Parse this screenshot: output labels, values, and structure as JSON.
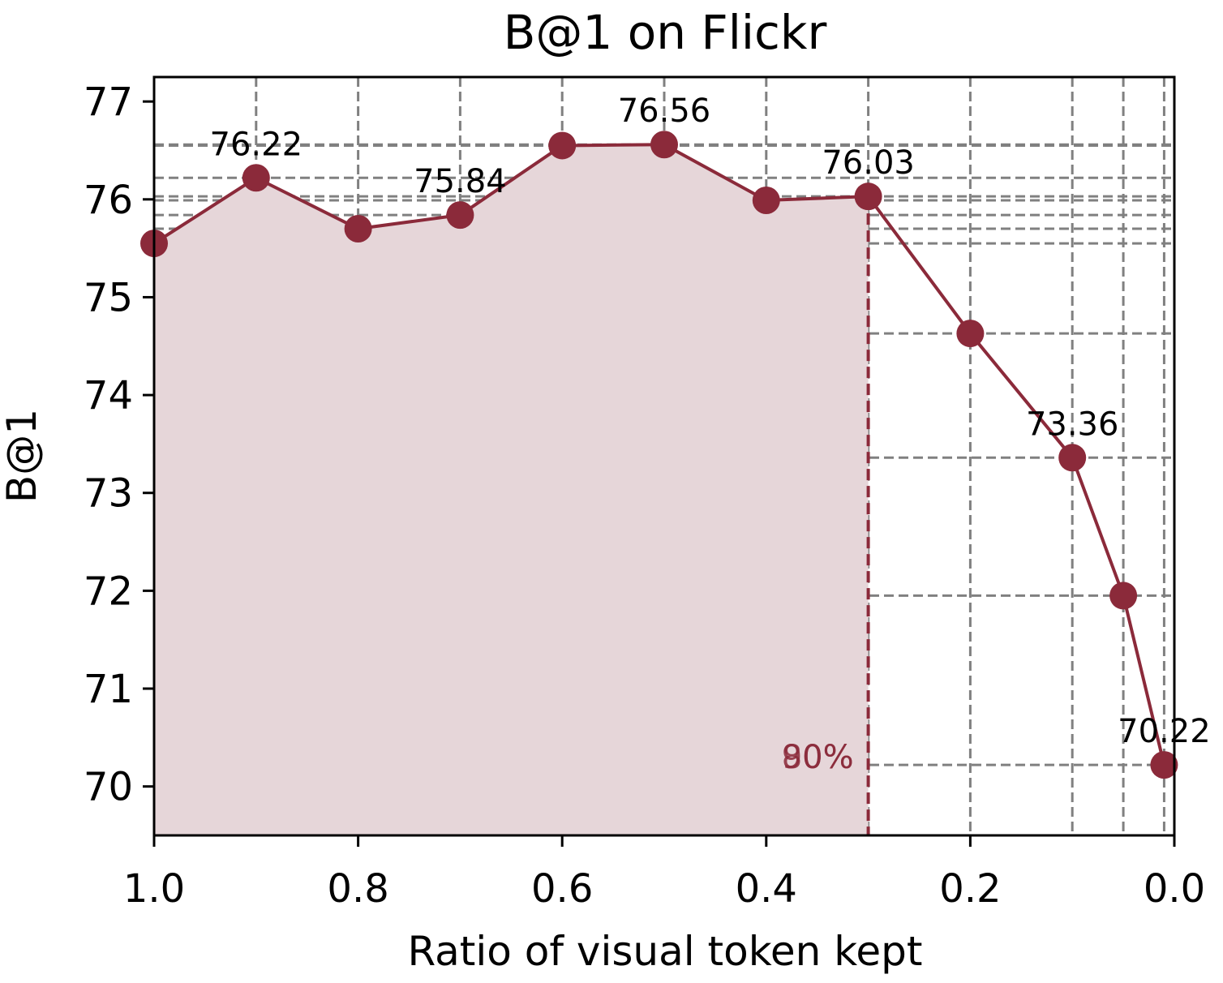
{
  "chart_data": {
    "type": "line",
    "title": "B@1 on Flickr",
    "xlabel": "Ratio of visual token kept",
    "ylabel": "B@1",
    "x_reversed": true,
    "xlim": [
      1.0,
      0.0
    ],
    "ylim": [
      69.5,
      77.25
    ],
    "x_ticks": [
      1.0,
      0.8,
      0.6,
      0.4,
      0.2,
      0.0
    ],
    "x_tick_labels": [
      "1.0",
      "0.8",
      "0.6",
      "0.4",
      "0.2",
      "0.0"
    ],
    "y_ticks": [
      70,
      71,
      72,
      73,
      74,
      75,
      76,
      77
    ],
    "y_tick_labels": [
      "70",
      "71",
      "72",
      "73",
      "74",
      "75",
      "76",
      "77"
    ],
    "grid": true,
    "series": [
      {
        "x": [
          1.0,
          0.9,
          0.8,
          0.7,
          0.6,
          0.5,
          0.4,
          0.3,
          0.2,
          0.1,
          0.05,
          0.01
        ],
        "y": [
          75.55,
          76.22,
          75.7,
          75.84,
          76.55,
          76.56,
          75.99,
          76.03,
          74.63,
          73.36,
          71.95,
          70.22
        ],
        "color": "#8B2A3A",
        "fill_color": "#E6D6D9"
      }
    ],
    "annotations": [
      {
        "x": 0.9,
        "y": 76.22,
        "text": "76.22"
      },
      {
        "x": 0.7,
        "y": 75.84,
        "text": "75.84"
      },
      {
        "x": 0.5,
        "y": 76.56,
        "text": "76.56"
      },
      {
        "x": 0.3,
        "y": 76.03,
        "text": "76.03"
      },
      {
        "x": 0.1,
        "y": 73.36,
        "text": "73.36"
      },
      {
        "x": 0.01,
        "y": 70.22,
        "text": "70.22"
      }
    ],
    "threshold_marker": {
      "x": 0.3,
      "labels": [
        "90%",
        "80%"
      ],
      "color": "#8B2A3A"
    }
  }
}
